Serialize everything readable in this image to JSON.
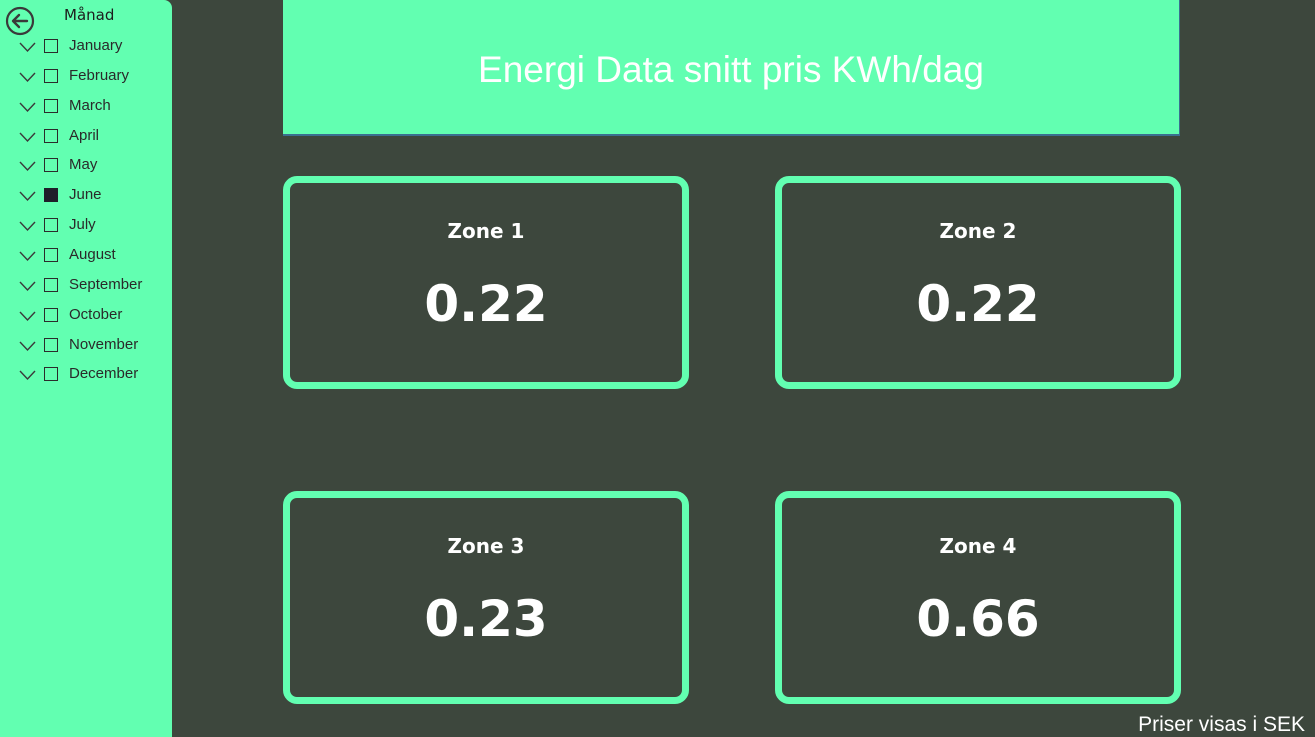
{
  "sidebar": {
    "title": "Månad",
    "back_icon": "back-arrow-circle-icon",
    "months": [
      {
        "label": "January",
        "checked": false
      },
      {
        "label": "February",
        "checked": false
      },
      {
        "label": "March",
        "checked": false
      },
      {
        "label": "April",
        "checked": false
      },
      {
        "label": "May",
        "checked": false
      },
      {
        "label": "June",
        "checked": true
      },
      {
        "label": "July",
        "checked": false
      },
      {
        "label": "August",
        "checked": false
      },
      {
        "label": "September",
        "checked": false
      },
      {
        "label": "October",
        "checked": false
      },
      {
        "label": "November",
        "checked": false
      },
      {
        "label": "December",
        "checked": false
      }
    ]
  },
  "header": {
    "title": "Energi Data snitt pris KWh/dag"
  },
  "cards": [
    {
      "zone": "Zone 1",
      "value": "0.22"
    },
    {
      "zone": "Zone 2",
      "value": "0.22"
    },
    {
      "zone": "Zone 3",
      "value": "0.23"
    },
    {
      "zone": "Zone 4",
      "value": "0.66"
    }
  ],
  "footer": {
    "note": "Priser visas i SEK"
  },
  "colors": {
    "accent": "#62ffb1",
    "background": "#3d473d",
    "text": "#ffffff"
  }
}
